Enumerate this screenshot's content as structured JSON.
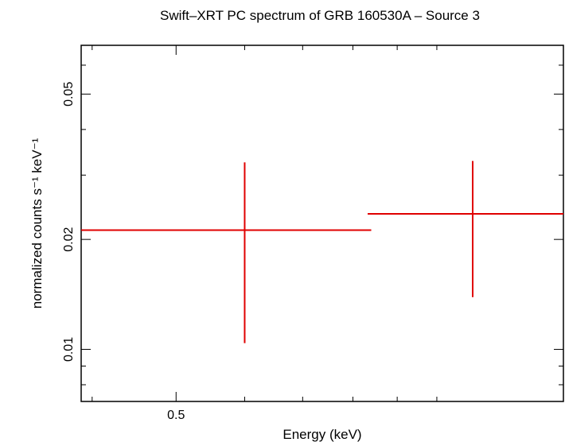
{
  "chart_data": {
    "type": "scatter",
    "title": "Swift–XRT PC spectrum of GRB 160530A – Source 3",
    "xlabel": "Energy (keV)",
    "ylabel": "normalized counts s⁻¹ keV⁻¹",
    "x_scale": "log",
    "y_scale": "log",
    "xlim": [
      0.3885,
      1.4
    ],
    "ylim": [
      0.0072,
      0.068
    ],
    "x_ticks": [
      {
        "value": 0.5,
        "label": "0.5"
      }
    ],
    "y_ticks": [
      {
        "value": 0.01,
        "label": "0.01"
      },
      {
        "value": 0.02,
        "label": "0.02"
      },
      {
        "value": 0.05,
        "label": "0.05"
      }
    ],
    "series": [
      {
        "color": "#e00000",
        "points": [
          {
            "x": 0.6,
            "x_lo": 0.3885,
            "x_hi": 0.84,
            "y": 0.0212,
            "y_lo": 0.0104,
            "y_hi": 0.0325
          },
          {
            "x": 1.1,
            "x_lo": 0.832,
            "x_hi": 1.4,
            "y": 0.0235,
            "y_lo": 0.0139,
            "y_hi": 0.0328
          }
        ]
      }
    ],
    "grid": false
  }
}
